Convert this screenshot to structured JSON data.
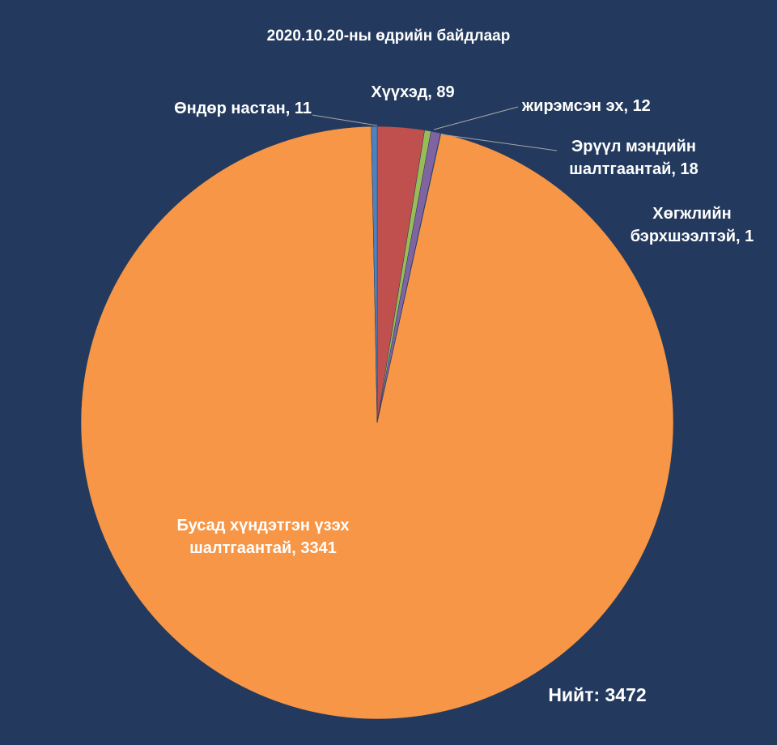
{
  "chart_data": {
    "type": "pie",
    "title": "2020.10.20-ны  өдрийн байдлаар",
    "values": [
      89,
      12,
      18,
      1,
      3341,
      11
    ],
    "value_labels": [
      [
        "Хүүхэд, 89"
      ],
      [
        "жирэмсэн эх, 12"
      ],
      [
        "Эрүүл мэндийн",
        "шалтгаантай, 18"
      ],
      [
        "Хөгжлийн",
        "бэрхшээлтэй, 1"
      ],
      [
        "Бусад хүндэтгэн үзэх",
        "шалтгаантай, 3341"
      ],
      [
        "Өндөр настан, 11"
      ]
    ],
    "colors": [
      "#c0504d",
      "#9bbb59",
      "#8064a2",
      "#4bacc6",
      "#f79646",
      "#4f81bd"
    ],
    "annotation": "Нийт: 3472"
  }
}
